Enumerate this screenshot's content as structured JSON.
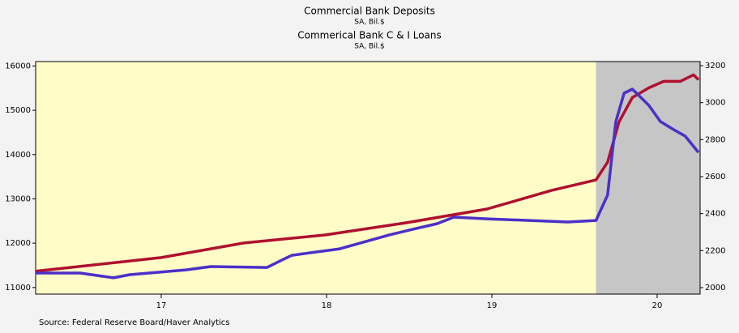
{
  "chart_data": {
    "type": "line",
    "source": "Source:  Federal Reserve Board/Haver Analytics",
    "xlim": [
      2016.74,
      2020.76
    ],
    "xticks": [
      {
        "value": 2017.5,
        "label": "17"
      },
      {
        "value": 2018.5,
        "label": "18"
      },
      {
        "value": 2019.5,
        "label": "19"
      },
      {
        "value": 2020.5,
        "label": "20"
      }
    ],
    "ylim": [
      10850,
      16100
    ],
    "yticks": [
      11000,
      12000,
      13000,
      14000,
      15000,
      16000
    ],
    "y2lim": [
      1965,
      3222
    ],
    "y2ticks": [
      2000,
      2200,
      2400,
      2600,
      2800,
      3000,
      3200
    ],
    "recession": [
      2020.13,
      2020.76
    ],
    "series": [
      {
        "name": "Commercial Bank Deposits",
        "units": "SA, Bil.$",
        "color": "#b0102e",
        "axis": "y",
        "x": [
          2016.74,
          2017.5,
          2018.0,
          2018.49,
          2018.98,
          2019.47,
          2019.86,
          2020.13,
          2020.2,
          2020.27,
          2020.35,
          2020.45,
          2020.54,
          2020.64,
          2020.72,
          2020.75
        ],
        "values": [
          11365,
          11675,
          12004,
          12186,
          12460,
          12770,
          13190,
          13427,
          13828,
          14741,
          15288,
          15507,
          15653,
          15653,
          15800,
          15690
        ]
      },
      {
        "name": "Commerical Bank C & I Loans",
        "units": "SA, Bil.$",
        "color": "#4a30c8",
        "axis": "y2",
        "x": [
          2016.74,
          2017.01,
          2017.21,
          2017.31,
          2017.65,
          2017.8,
          2018.14,
          2018.22,
          2018.29,
          2018.58,
          2018.88,
          2019.02,
          2019.17,
          2019.27,
          2019.47,
          2019.96,
          2020.13,
          2020.2,
          2020.25,
          2020.3,
          2020.35,
          2020.45,
          2020.52,
          2020.6,
          2020.67,
          2020.75
        ],
        "values": [
          2079,
          2079,
          2053,
          2070,
          2096,
          2114,
          2109,
          2145,
          2175,
          2210,
          2285,
          2315,
          2346,
          2381,
          2372,
          2355,
          2363,
          2500,
          2898,
          3051,
          3073,
          2985,
          2898,
          2854,
          2819,
          2731
        ]
      }
    ]
  }
}
